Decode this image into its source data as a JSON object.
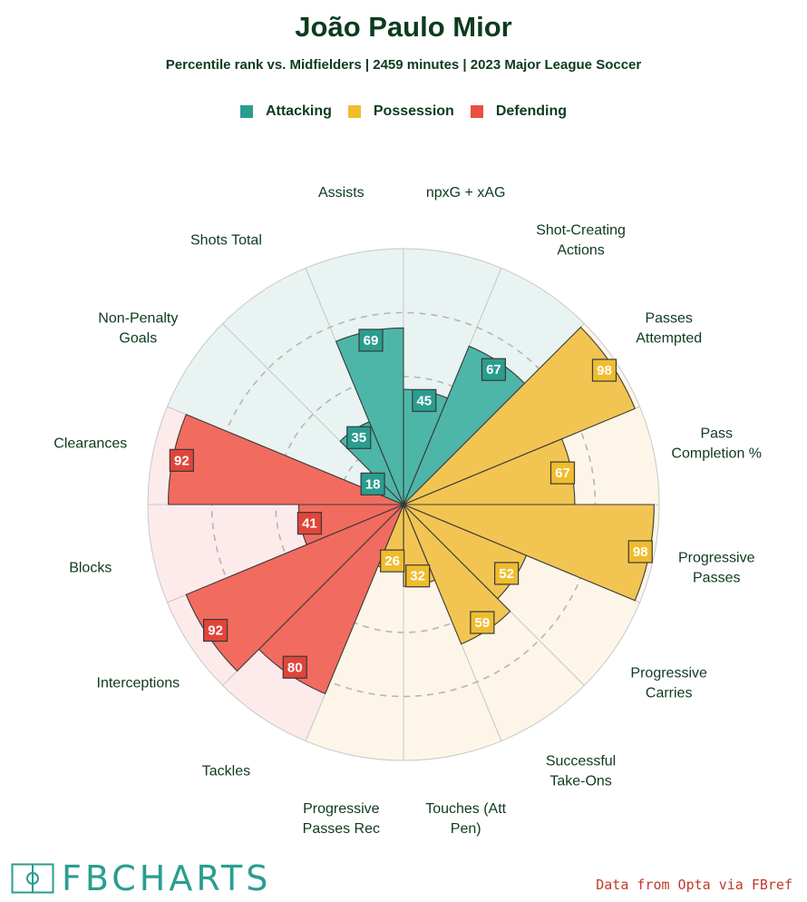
{
  "header": {
    "title": "João Paulo Mior",
    "subtitle": "Percentile rank vs. Midfielders | 2459 minutes | 2023 Major League Soccer"
  },
  "legend": [
    {
      "label": "Attacking",
      "color": "#2a9d8f"
    },
    {
      "label": "Possession",
      "color": "#f0bc2e"
    },
    {
      "label": "Defending",
      "color": "#ea4f43"
    }
  ],
  "footer": {
    "brand": "FBCHARTS",
    "source": "Data from Opta via FBref"
  },
  "chart_data": {
    "type": "pie",
    "scale": [
      0,
      100
    ],
    "categories": [
      "npxG + xAG",
      "Shot-Creating Actions",
      "Passes Attempted",
      "Pass Completion %",
      "Progressive Passes",
      "Progressive Carries",
      "Successful Take-Ons",
      "Touches (Att Pen)",
      "Progressive Passes Rec",
      "Tackles",
      "Interceptions",
      "Blocks",
      "Clearances",
      "Non-Penalty Goals",
      "Shots Total",
      "Assists"
    ],
    "label_lines": [
      [
        "npxG + xAG"
      ],
      [
        "Shot-Creating",
        "Actions"
      ],
      [
        "Passes",
        "Attempted"
      ],
      [
        "Pass",
        "Completion %"
      ],
      [
        "Progressive",
        "Passes"
      ],
      [
        "Progressive",
        "Carries"
      ],
      [
        "Successful",
        "Take-Ons"
      ],
      [
        "Touches (Att",
        "Pen)"
      ],
      [
        "Progressive",
        "Passes Rec"
      ],
      [
        "Tackles"
      ],
      [
        "Interceptions"
      ],
      [
        "Blocks"
      ],
      [
        "Clearances"
      ],
      [
        "Non-Penalty",
        "Goals"
      ],
      [
        "Shots Total"
      ],
      [
        "Assists"
      ]
    ],
    "values": [
      45,
      67,
      98,
      67,
      98,
      52,
      59,
      32,
      26,
      80,
      92,
      41,
      92,
      18,
      35,
      69
    ],
    "groups": [
      "Attacking",
      "Attacking",
      "Possession",
      "Possession",
      "Possession",
      "Possession",
      "Possession",
      "Possession",
      "Possession",
      "Defending",
      "Defending",
      "Defending",
      "Defending",
      "Attacking",
      "Attacking",
      "Attacking"
    ],
    "colors": {
      "Attacking": {
        "fill": "#4db6a8",
        "bg": "#e9f4f2",
        "box": "#2a9d8f"
      },
      "Possession": {
        "fill": "#f2c552",
        "bg": "#fdf6e8",
        "box": "#f0bc2e"
      },
      "Defending": {
        "fill": "#f26b5f",
        "bg": "#fdebec",
        "box": "#e0453a"
      }
    }
  }
}
